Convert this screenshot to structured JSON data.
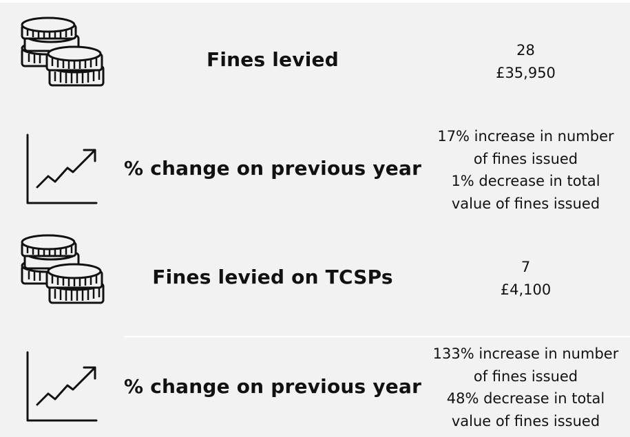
{
  "rows": [
    {
      "icon": "coins-icon",
      "label": "Fines levied",
      "values": [
        "28",
        "£35,950"
      ]
    },
    {
      "icon": "trend-up-chart-icon",
      "label": "% change on previous year",
      "values": [
        "17% increase in number",
        "of fines issued",
        "1% decrease in total",
        "value of fines issued"
      ]
    },
    {
      "icon": "coins-icon",
      "label": "Fines levied on TCSPs",
      "values": [
        "7",
        "£4,100"
      ]
    },
    {
      "icon": "trend-up-chart-icon",
      "label": "% change on previous year",
      "values": [
        "133% increase in number",
        "of fines issued",
        "48% decrease in total",
        "value of fines issued"
      ]
    }
  ],
  "colors": {
    "background": "#f2f2f2",
    "text": "#111111",
    "icon_stroke": "#111111"
  }
}
